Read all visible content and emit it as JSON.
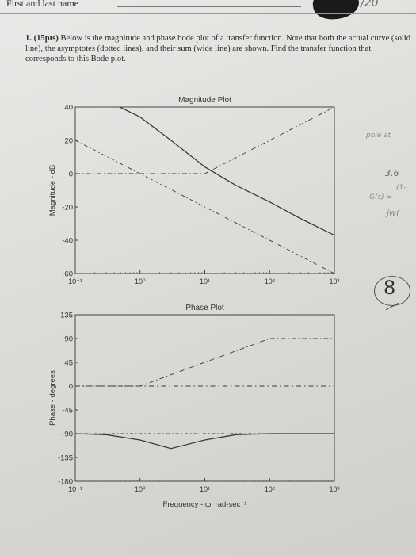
{
  "header": {
    "name_label": "First and last name",
    "score_mark": "/20"
  },
  "problem": {
    "number": "1.",
    "points": "(15pts)",
    "text": "Below is the magnitude and phase bode plot of a transfer function. Note that both the actual curve (solid line), the asymptotes (dotted lines), and their sum (wide line) are shown. Find the transfer function that corresponds to this Bode plot."
  },
  "handwriting": {
    "note_pole": "pole at",
    "note_value": "3.6",
    "note_gs": "G(s) =",
    "note_frac": "(1-",
    "note_jw": "jw(",
    "grade": "8"
  },
  "chart_data": [
    {
      "type": "line",
      "title": "Magnitude Plot",
      "xlabel": "",
      "ylabel": "Magnitude - dB",
      "xscale": "log",
      "xlim": [
        0.1,
        1000
      ],
      "ylim": [
        -60,
        40
      ],
      "x_tick_labels": [
        "10⁻¹",
        "10⁰",
        "10¹",
        "10²",
        "10³"
      ],
      "y_ticks": [
        40,
        20,
        0,
        -20,
        -40,
        -60
      ],
      "grid": false,
      "series": [
        {
          "style": "solid",
          "x": [
            0.1,
            0.3,
            1,
            3,
            10,
            30,
            100,
            300,
            1000
          ],
          "y": [
            48,
            44,
            34,
            20,
            4,
            -7,
            -17,
            -27,
            -37
          ]
        },
        {
          "style": "dash-dot-flat",
          "x": [
            0.1,
            1000
          ],
          "y": [
            34,
            34
          ]
        },
        {
          "style": "dash-dot-rising",
          "x": [
            0.1,
            10,
            100,
            1000
          ],
          "y": [
            0,
            0,
            20,
            40
          ]
        },
        {
          "style": "dash-dot-falling",
          "x": [
            0.1,
            1000
          ],
          "y": [
            20,
            -60
          ]
        }
      ]
    },
    {
      "type": "line",
      "title": "Phase Plot",
      "xlabel": "Frequency - ω, rad-sec⁻¹",
      "ylabel": "Phase - degrees",
      "xscale": "log",
      "xlim": [
        0.1,
        1000
      ],
      "ylim": [
        -180,
        135
      ],
      "x_tick_labels": [
        "10⁻¹",
        "10⁰",
        "10¹",
        "10²",
        "10³"
      ],
      "y_ticks": [
        135,
        90,
        45,
        0,
        -45,
        -90,
        -135,
        -180
      ],
      "grid": false,
      "series": [
        {
          "style": "solid",
          "x": [
            0.1,
            0.3,
            1,
            3,
            10,
            30,
            100,
            1000
          ],
          "y": [
            -90,
            -92,
            -102,
            -118,
            -102,
            -92,
            -90,
            -90
          ]
        },
        {
          "style": "dash-dot-step",
          "x": [
            0.1,
            1,
            10,
            100,
            1000
          ],
          "y": [
            0,
            0,
            45,
            90,
            90
          ]
        },
        {
          "style": "dash-dot-flat",
          "x": [
            0.1,
            1000
          ],
          "y": [
            0,
            0
          ]
        },
        {
          "style": "dash-dot-minus90",
          "x": [
            0.1,
            1000
          ],
          "y": [
            -90,
            -90
          ]
        }
      ]
    }
  ]
}
